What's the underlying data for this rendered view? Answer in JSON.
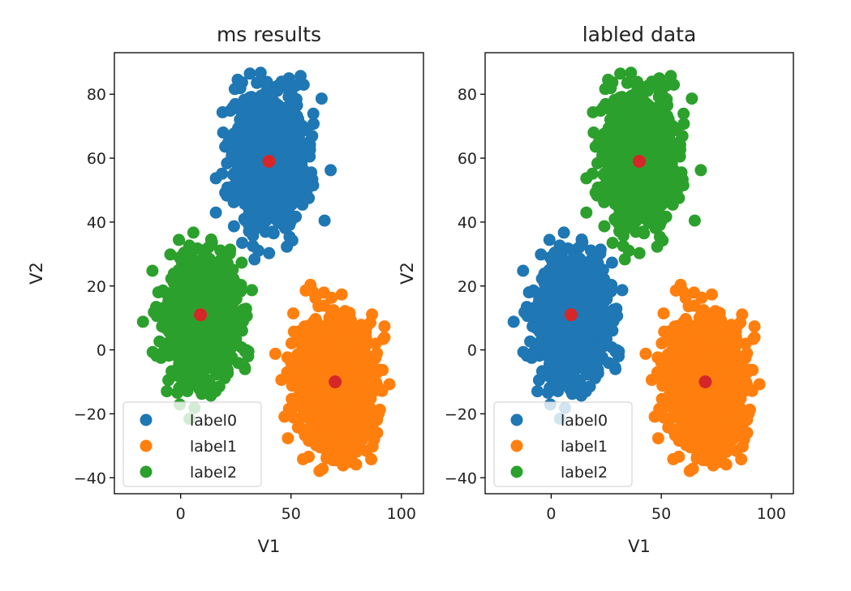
{
  "colors": {
    "label0": "#1f77b4",
    "label1": "#ff7f0e",
    "label2": "#2ca02c",
    "center": "#d62728",
    "axes": "#000000",
    "legend_border": "#cccccc"
  },
  "chart_data": [
    {
      "type": "scatter",
      "title": "ms results",
      "xlabel": "V1",
      "ylabel": "V2",
      "xlim": [
        -30,
        110
      ],
      "ylim": [
        -45,
        93
      ],
      "xticks": [
        0,
        50,
        100
      ],
      "yticks": [
        -40,
        -20,
        0,
        20,
        40,
        60,
        80
      ],
      "grid": false,
      "legend": {
        "placement": "lower-left",
        "entries": [
          "label0",
          "label1",
          "label2"
        ]
      },
      "series": [
        {
          "name": "label0",
          "color_key": "label0",
          "center": [
            40,
            60
          ],
          "spread": [
            8,
            10
          ],
          "extent_x": [
            12,
            72
          ],
          "extent_y": [
            27,
            88
          ],
          "n": 1000
        },
        {
          "name": "label1",
          "color_key": "label1",
          "center": [
            70,
            -10
          ],
          "spread": [
            9,
            10
          ],
          "extent_x": [
            34,
            105
          ],
          "extent_y": [
            -39,
            26
          ],
          "n": 1000
        },
        {
          "name": "label2",
          "color_key": "label2",
          "center": [
            9,
            10
          ],
          "spread": [
            8,
            9
          ],
          "extent_x": [
            -25,
            43
          ],
          "extent_y": [
            -22,
            40
          ],
          "n": 1000
        }
      ],
      "centers": [
        [
          40,
          59
        ],
        [
          70,
          -10
        ],
        [
          9,
          11
        ]
      ]
    },
    {
      "type": "scatter",
      "title": "labled data",
      "xlabel": "V1",
      "ylabel": "V2",
      "xlim": [
        -30,
        110
      ],
      "ylim": [
        -45,
        93
      ],
      "xticks": [
        0,
        50,
        100
      ],
      "yticks": [
        -40,
        -20,
        0,
        20,
        40,
        60,
        80
      ],
      "grid": false,
      "legend": {
        "placement": "lower-left",
        "entries": [
          "label0",
          "label1",
          "label2"
        ]
      },
      "series": [
        {
          "name": "label0",
          "color_key": "label0",
          "center": [
            9,
            10
          ],
          "spread": [
            8,
            9
          ],
          "extent_x": [
            -25,
            43
          ],
          "extent_y": [
            -22,
            40
          ],
          "n": 1000
        },
        {
          "name": "label1",
          "color_key": "label1",
          "center": [
            70,
            -10
          ],
          "spread": [
            9,
            10
          ],
          "extent_x": [
            34,
            105
          ],
          "extent_y": [
            -39,
            26
          ],
          "n": 1000
        },
        {
          "name": "label2",
          "color_key": "label2",
          "center": [
            40,
            60
          ],
          "spread": [
            8,
            10
          ],
          "extent_x": [
            12,
            72
          ],
          "extent_y": [
            27,
            88
          ],
          "n": 1000
        }
      ],
      "centers": [
        [
          40,
          59
        ],
        [
          70,
          -10
        ],
        [
          9,
          11
        ]
      ]
    }
  ]
}
